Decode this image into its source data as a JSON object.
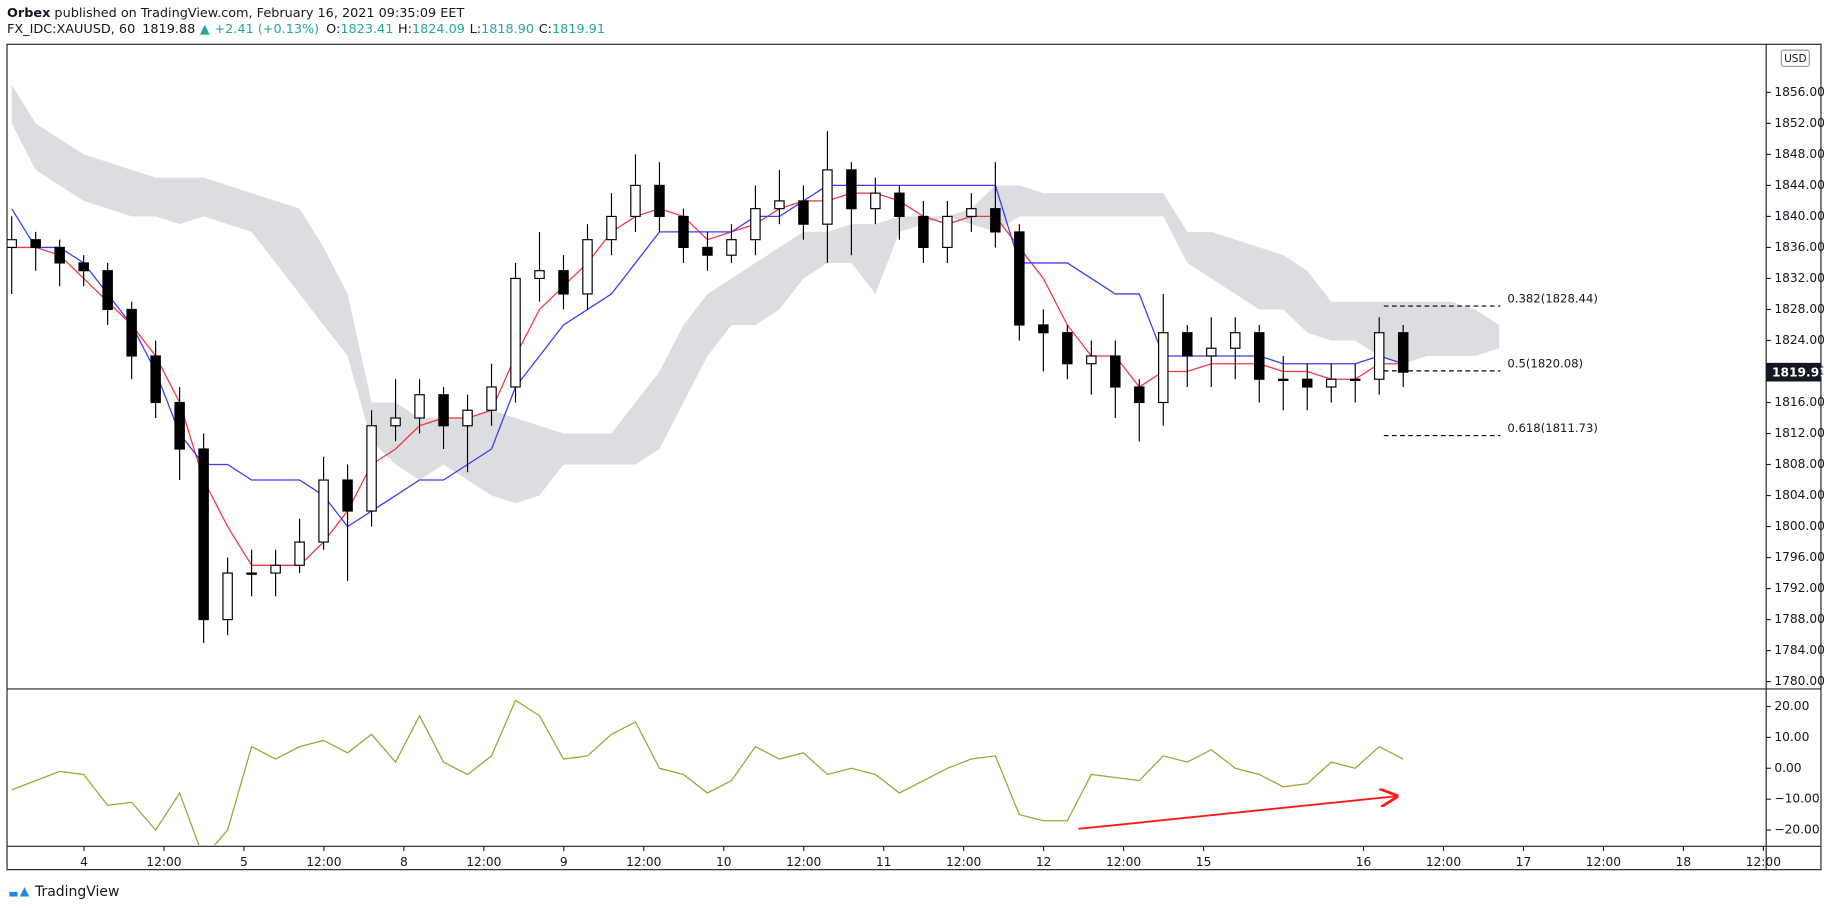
{
  "header": {
    "author": "Orbex",
    "published": " published on TradingView.com, February 16, 2021 09:35:09 EET",
    "symbol": "FX_IDC:XAUUSD, 60",
    "last": "1819.88",
    "arrow": "▲",
    "change": "+2.41 (+0.13%)",
    "o_label": "O:",
    "o": "1823.41",
    "h_label": "H:",
    "h": "1824.09",
    "l_label": "L:",
    "l": "1818.90",
    "c_label": "C:",
    "c": "1819.91"
  },
  "footer": {
    "brand": "TradingView"
  },
  "chart_data": [
    {
      "type": "candlestick",
      "currency": "USD",
      "up_color": "#ffffff",
      "down_color": "#000000",
      "open": [
        1836,
        1837,
        1836,
        1834,
        1833,
        1828,
        1822,
        1816,
        1810,
        1788,
        1794,
        1794,
        1795,
        1798,
        1806,
        1802,
        1813,
        1814,
        1817,
        1813,
        1815,
        1818,
        1832,
        1833,
        1830,
        1837,
        1840,
        1844,
        1840,
        1836,
        1835,
        1837,
        1841,
        1842,
        1839,
        1846,
        1841,
        1843,
        1840,
        1836,
        1840,
        1841,
        1838,
        1826,
        1825,
        1821,
        1822,
        1818,
        1816,
        1825,
        1822,
        1823,
        1825,
        1819,
        1819,
        1818,
        1819,
        1819,
        1825
      ],
      "high": [
        1840,
        1838,
        1837,
        1835,
        1834,
        1829,
        1824,
        1818,
        1812,
        1796,
        1797,
        1797,
        1801,
        1809,
        1808,
        1815,
        1819,
        1819,
        1818,
        1817,
        1821,
        1834,
        1838,
        1835,
        1839,
        1843,
        1848,
        1847,
        1841,
        1838,
        1839,
        1844,
        1846,
        1844,
        1851,
        1847,
        1845,
        1844,
        1842,
        1842,
        1843,
        1847,
        1839,
        1828,
        1826,
        1824,
        1824,
        1819,
        1830,
        1826,
        1827,
        1827,
        1826,
        1822,
        1821,
        1821,
        1821,
        1827,
        1826
      ],
      "low": [
        1830,
        1833,
        1831,
        1831,
        1826,
        1819,
        1814,
        1806,
        1785,
        1786,
        1791,
        1791,
        1794,
        1797,
        1793,
        1800,
        1811,
        1812,
        1810,
        1807,
        1813,
        1816,
        1829,
        1828,
        1828,
        1835,
        1838,
        1838,
        1834,
        1833,
        1834,
        1835,
        1839,
        1837,
        1834,
        1835,
        1839,
        1837,
        1834,
        1834,
        1838,
        1836,
        1824,
        1820,
        1819,
        1817,
        1814,
        1811,
        1813,
        1818,
        1818,
        1819,
        1816,
        1815,
        1815,
        1816,
        1816,
        1817,
        1818
      ],
      "close": [
        1837,
        1836,
        1834,
        1833,
        1828,
        1822,
        1816,
        1810,
        1788,
        1794,
        1794,
        1795,
        1798,
        1806,
        1802,
        1813,
        1814,
        1817,
        1813,
        1815,
        1818,
        1832,
        1833,
        1830,
        1837,
        1840,
        1844,
        1840,
        1836,
        1835,
        1837,
        1841,
        1842,
        1839,
        1846,
        1841,
        1843,
        1840,
        1836,
        1840,
        1841,
        1838,
        1826,
        1825,
        1821,
        1822,
        1818,
        1816,
        1825,
        1822,
        1823,
        1825,
        1819,
        1819,
        1818,
        1819,
        1819,
        1825,
        1819.91
      ],
      "overlays": [
        {
          "color": "#f23645",
          "values": [
            1836,
            1836,
            1835,
            1832,
            1829,
            1826,
            1822,
            1816,
            1806,
            1800,
            1795,
            1795,
            1795,
            1798,
            1802,
            1808,
            1810,
            1813,
            1814,
            1814,
            1815,
            1822,
            1828,
            1831,
            1834,
            1838,
            1840,
            1841,
            1840,
            1837,
            1838,
            1839,
            1841,
            1842,
            1842,
            1843,
            1843,
            1842,
            1840,
            1839,
            1840,
            1840,
            1836,
            1832,
            1826,
            1822,
            1822,
            1818,
            1820,
            1820,
            1821,
            1821,
            1821,
            1820,
            1820,
            1819,
            1819,
            1821,
            1821
          ]
        },
        {
          "color": "#3d3df5",
          "values": [
            1841,
            1836,
            1836,
            1834,
            1830,
            1826,
            1820,
            1812,
            1808,
            1808,
            1806,
            1806,
            1806,
            1804,
            1800,
            1802,
            1804,
            1806,
            1806,
            1808,
            1810,
            1818,
            1822,
            1826,
            1828,
            1830,
            1834,
            1838,
            1838,
            1838,
            1838,
            1840,
            1840,
            1842,
            1844,
            1844,
            1844,
            1844,
            1844,
            1844,
            1844,
            1844,
            1834,
            1834,
            1834,
            1832,
            1830,
            1830,
            1822,
            1822,
            1822,
            1822,
            1822,
            1821,
            1821,
            1821,
            1821,
            1822,
            1821
          ]
        }
      ],
      "cloud": {
        "color": "#dcdde1",
        "upper": [
          1857,
          1852,
          1850,
          1848,
          1847,
          1846,
          1845,
          1845,
          1845,
          1844,
          1843,
          1842,
          1841,
          1836,
          1830,
          1816,
          1816,
          1814,
          1814,
          1814,
          1815,
          1814,
          1813,
          1812,
          1812,
          1812,
          1816,
          1820,
          1826,
          1830,
          1832,
          1834,
          1836,
          1838,
          1838,
          1839,
          1839,
          1840,
          1840,
          1840,
          1841,
          1844,
          1844,
          1843,
          1843,
          1843,
          1843,
          1843,
          1843,
          1838,
          1838,
          1837,
          1836,
          1835,
          1833,
          1829,
          1829,
          1829,
          1829,
          1829,
          1829,
          1828,
          1826
        ],
        "lower": [
          1852,
          1846,
          1844,
          1842,
          1841,
          1840,
          1840,
          1839,
          1840,
          1839,
          1838,
          1834,
          1830,
          1826,
          1822,
          1811,
          1808,
          1806,
          1808,
          1806,
          1804,
          1803,
          1804,
          1808,
          1808,
          1808,
          1808,
          1810,
          1816,
          1822,
          1826,
          1826,
          1828,
          1832,
          1834,
          1834,
          1830,
          1838,
          1839,
          1840,
          1839,
          1838,
          1840,
          1840,
          1840,
          1840,
          1840,
          1840,
          1840,
          1834,
          1832,
          1830,
          1828,
          1828,
          1825,
          1824,
          1824,
          1822,
          1821,
          1822,
          1822,
          1822,
          1823
        ]
      },
      "fib_levels": [
        {
          "value": 1828.44,
          "label": "0.382(1828.44)"
        },
        {
          "value": 1820.08,
          "label": "0.5(1820.08)"
        },
        {
          "value": 1811.73,
          "label": "0.618(1811.73)"
        }
      ],
      "ylim": [
        1779.2,
        1862.2
      ],
      "yticks": [
        {
          "value": 1856,
          "label": "1856.00"
        },
        {
          "value": 1852,
          "label": "1852.00"
        },
        {
          "value": 1848,
          "label": "1848.00"
        },
        {
          "value": 1844,
          "label": "1844.00"
        },
        {
          "value": 1840,
          "label": "1840.00"
        },
        {
          "value": 1836,
          "label": "1836.00"
        },
        {
          "value": 1832,
          "label": "1832.00"
        },
        {
          "value": 1828,
          "label": "1828.00"
        },
        {
          "value": 1824,
          "label": "1824.00"
        },
        {
          "value": 1820,
          "label": "1820.00"
        },
        {
          "value": 1816,
          "label": "1816.00"
        },
        {
          "value": 1812,
          "label": "1812.00"
        },
        {
          "value": 1808,
          "label": "1808.00"
        },
        {
          "value": 1804,
          "label": "1804.00"
        },
        {
          "value": 1800,
          "label": "1800.00"
        },
        {
          "value": 1796,
          "label": "1796.00"
        },
        {
          "value": 1792,
          "label": "1792.00"
        },
        {
          "value": 1788,
          "label": "1788.00"
        },
        {
          "value": 1784,
          "label": "1784.00"
        },
        {
          "value": 1780,
          "label": "1780.00"
        }
      ],
      "grid": false
    },
    {
      "type": "line",
      "color": "#a3a33a",
      "values": [
        -7,
        -4,
        -1,
        -2,
        -12,
        -11,
        -20,
        -8,
        -29,
        -20,
        7,
        3,
        7,
        9,
        5,
        11,
        2,
        17,
        2,
        -2,
        4,
        22,
        17,
        3,
        4,
        11,
        15,
        0,
        -2,
        -8,
        -4,
        7,
        3,
        5,
        -2,
        0,
        -2,
        -8,
        -4,
        0,
        3,
        4,
        -15,
        -17,
        -17,
        -2,
        -3,
        -4,
        4,
        2,
        6,
        0,
        -2,
        -6,
        -5,
        2,
        0,
        7,
        3
      ],
      "ylim": [
        -24.9,
        25.3
      ],
      "yticks": [
        {
          "value": 20,
          "label": "20.00"
        },
        {
          "value": 10,
          "label": "10.00"
        },
        {
          "value": 0,
          "label": "0.00"
        },
        {
          "value": -10,
          "label": "−10.00"
        },
        {
          "value": -20,
          "label": "−20.00"
        }
      ],
      "xlabels": [
        "4",
        "12:00",
        "5",
        "12:00",
        "8",
        "12:00",
        "9",
        "12:00",
        "10",
        "12:00",
        "11",
        "12:00",
        "12",
        "12:00",
        "15",
        null,
        "16",
        "12:00",
        "17",
        "12:00",
        "18",
        "12:00"
      ],
      "grid": false
    }
  ]
}
